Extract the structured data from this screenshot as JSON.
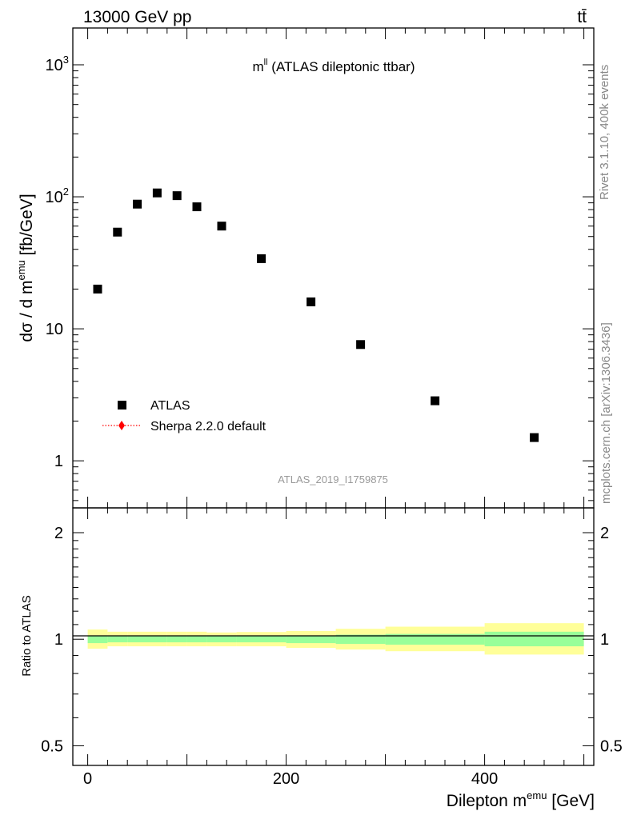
{
  "header": {
    "left_label": "13000 GeV pp",
    "right_label": "tt̄"
  },
  "side_labels": {
    "rivet": "Rivet 3.1.10,  400k events",
    "mcplots": "mcplots.cern.ch [arXiv:1306.3436]"
  },
  "colors": {
    "data_marker": "#000000",
    "mc_line": "#ff0000",
    "band_outer": "#ffff99",
    "band_inner": "#99ff99"
  },
  "chart_data": [
    {
      "type": "scatter",
      "panel": "main",
      "title": "m",
      "title_sup": "ll",
      "title_suffix": " (ATLAS dileptonic ttbar)",
      "ylabel_parts": [
        "dσ / d m",
        "emu",
        " [fb/GeV]"
      ],
      "yscale": "log",
      "ylim": [
        0.44,
        1900
      ],
      "xlim": [
        -15,
        510
      ],
      "yticks": [
        {
          "value": 1,
          "label": "1"
        },
        {
          "value": 10,
          "label": "10"
        },
        {
          "value": 100,
          "label": "10",
          "sup": "2"
        },
        {
          "value": 1000,
          "label": "10",
          "sup": "3"
        }
      ],
      "annotation": "ATLAS_2019_I1759875",
      "legend": [
        {
          "label": "ATLAS",
          "marker": "square"
        },
        {
          "label": "Sherpa 2.2.0 default",
          "marker": "diamond-dotted"
        }
      ],
      "series": [
        {
          "name": "ATLAS",
          "points": [
            {
              "x": 10,
              "y": 20.0
            },
            {
              "x": 30,
              "y": 54.0
            },
            {
              "x": 50,
              "y": 88.0
            },
            {
              "x": 70,
              "y": 107.0
            },
            {
              "x": 90,
              "y": 102.0
            },
            {
              "x": 110,
              "y": 84.0
            },
            {
              "x": 135,
              "y": 60.0
            },
            {
              "x": 175,
              "y": 34.0
            },
            {
              "x": 225,
              "y": 16.0
            },
            {
              "x": 275,
              "y": 7.6
            },
            {
              "x": 350,
              "y": 2.85
            },
            {
              "x": 450,
              "y": 1.5
            }
          ]
        }
      ]
    },
    {
      "type": "area",
      "panel": "ratio",
      "ylabel": "Ratio to ATLAS",
      "xlabel_parts": [
        "Dilepton m",
        "emu",
        " [GeV]"
      ],
      "yscale": "log",
      "ylim": [
        0.44,
        2.35
      ],
      "xlim": [
        -15,
        510
      ],
      "yticks": [
        {
          "value": 0.5,
          "label": "0.5"
        },
        {
          "value": 1,
          "label": "1"
        },
        {
          "value": 2,
          "label": "2"
        }
      ],
      "xticks": [
        {
          "value": 0,
          "label": "0"
        },
        {
          "value": 200,
          "label": "200"
        },
        {
          "value": 400,
          "label": "400"
        }
      ],
      "bins": [
        {
          "x0": 0,
          "x1": 20,
          "inner": [
            0.975,
            1.025
          ],
          "outer": [
            0.94,
            1.065
          ]
        },
        {
          "x0": 20,
          "x1": 40,
          "inner": [
            0.98,
            1.02
          ],
          "outer": [
            0.955,
            1.05
          ]
        },
        {
          "x0": 40,
          "x1": 60,
          "inner": [
            0.98,
            1.02
          ],
          "outer": [
            0.955,
            1.05
          ]
        },
        {
          "x0": 60,
          "x1": 80,
          "inner": [
            0.98,
            1.02
          ],
          "outer": [
            0.955,
            1.05
          ]
        },
        {
          "x0": 80,
          "x1": 100,
          "inner": [
            0.98,
            1.02
          ],
          "outer": [
            0.955,
            1.05
          ]
        },
        {
          "x0": 100,
          "x1": 120,
          "inner": [
            0.98,
            1.02
          ],
          "outer": [
            0.955,
            1.05
          ]
        },
        {
          "x0": 120,
          "x1": 150,
          "inner": [
            0.98,
            1.02
          ],
          "outer": [
            0.955,
            1.045
          ]
        },
        {
          "x0": 150,
          "x1": 200,
          "inner": [
            0.98,
            1.02
          ],
          "outer": [
            0.955,
            1.048
          ]
        },
        {
          "x0": 200,
          "x1": 250,
          "inner": [
            0.975,
            1.025
          ],
          "outer": [
            0.945,
            1.055
          ]
        },
        {
          "x0": 250,
          "x1": 300,
          "inner": [
            0.97,
            1.03
          ],
          "outer": [
            0.935,
            1.07
          ]
        },
        {
          "x0": 300,
          "x1": 400,
          "inner": [
            0.965,
            1.035
          ],
          "outer": [
            0.925,
            1.085
          ]
        },
        {
          "x0": 400,
          "x1": 500,
          "inner": [
            0.955,
            1.05
          ],
          "outer": [
            0.905,
            1.11
          ]
        }
      ]
    }
  ]
}
